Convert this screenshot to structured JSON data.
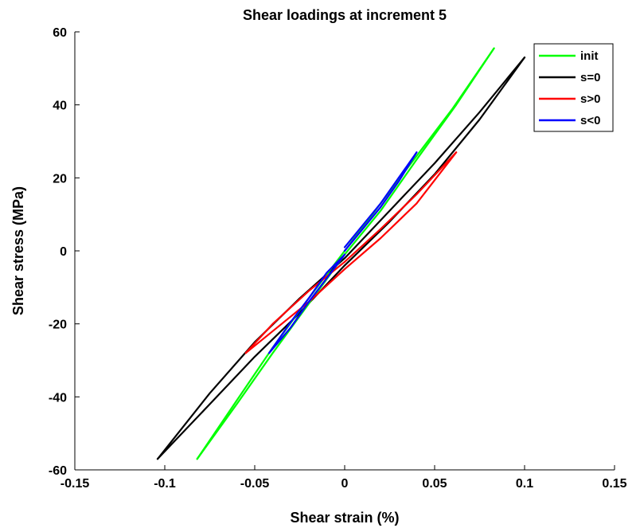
{
  "chart_data": {
    "type": "line",
    "title": "Shear loadings at increment 5",
    "xlabel": "Shear strain (%)",
    "ylabel": "Shear stress (MPa)",
    "xlim": [
      -0.15,
      0.15
    ],
    "ylim": [
      -60,
      60
    ],
    "xticks": [
      -0.15,
      -0.1,
      -0.05,
      0,
      0.05,
      0.1,
      0.15
    ],
    "xtick_labels": [
      "-0.15",
      "-0.1",
      "-0.05",
      "0",
      "0.05",
      "0.1",
      "0.15"
    ],
    "yticks": [
      -60,
      -40,
      -20,
      0,
      20,
      40,
      60
    ],
    "ytick_labels": [
      "-60",
      "-40",
      "-20",
      "0",
      "20",
      "40",
      "60"
    ],
    "grid": false,
    "legend": "top-right",
    "series": [
      {
        "name": "init",
        "color": "#00ff00",
        "segments": [
          [
            [
              0.0,
              0.0
            ],
            [
              0.02,
              13
            ],
            [
              0.04,
              26
            ],
            [
              0.06,
              39
            ],
            [
              0.083,
              55.5
            ]
          ],
          [
            [
              0.083,
              55.5
            ],
            [
              0.062,
              40
            ],
            [
              0.04,
              25
            ],
            [
              0.02,
              11
            ],
            [
              0.0,
              -1
            ]
          ],
          [
            [
              0.0,
              -1
            ],
            [
              -0.02,
              -14.5
            ],
            [
              -0.04,
              -28
            ],
            [
              -0.06,
              -42
            ],
            [
              -0.082,
              -57
            ]
          ],
          [
            [
              -0.082,
              -57
            ],
            [
              -0.06,
              -41
            ],
            [
              -0.04,
              -26.5
            ],
            [
              -0.02,
              -13
            ],
            [
              0.0,
              0.0
            ]
          ]
        ]
      },
      {
        "name": "s=0",
        "color": "#000000",
        "segments": [
          [
            [
              0.0,
              -2
            ],
            [
              0.025,
              11
            ],
            [
              0.05,
              24
            ],
            [
              0.075,
              38
            ],
            [
              0.1,
              53
            ]
          ],
          [
            [
              0.1,
              53
            ],
            [
              0.075,
              36
            ],
            [
              0.05,
              21
            ],
            [
              0.025,
              8
            ],
            [
              0.0,
              -4
            ]
          ],
          [
            [
              0.0,
              -4
            ],
            [
              -0.025,
              -17
            ],
            [
              -0.05,
              -29
            ],
            [
              -0.075,
              -42
            ],
            [
              -0.104,
              -57
            ]
          ],
          [
            [
              -0.104,
              -57
            ],
            [
              -0.075,
              -39
            ],
            [
              -0.05,
              -25
            ],
            [
              -0.025,
              -13
            ],
            [
              0.0,
              -2
            ]
          ]
        ]
      },
      {
        "name": "s>0",
        "color": "#ff0000",
        "segments": [
          [
            [
              0.0,
              -3
            ],
            [
              0.02,
              6
            ],
            [
              0.04,
              15.5
            ],
            [
              0.062,
              27
            ]
          ],
          [
            [
              0.062,
              27
            ],
            [
              0.04,
              13
            ],
            [
              0.02,
              3.5
            ],
            [
              0.0,
              -5
            ]
          ],
          [
            [
              0.0,
              -5
            ],
            [
              -0.02,
              -14
            ],
            [
              -0.04,
              -22
            ],
            [
              -0.055,
              -28
            ]
          ],
          [
            [
              -0.055,
              -28
            ],
            [
              -0.04,
              -20
            ],
            [
              -0.02,
              -11
            ],
            [
              0.0,
              -3
            ]
          ]
        ]
      },
      {
        "name": "s<0",
        "color": "#0000ff",
        "segments": [
          [
            [
              0.0,
              1
            ],
            [
              0.01,
              7
            ],
            [
              0.02,
              13
            ],
            [
              0.03,
              20
            ],
            [
              0.04,
              27
            ]
          ],
          [
            [
              0.04,
              27
            ],
            [
              0.03,
              19
            ],
            [
              0.02,
              12
            ],
            [
              0.01,
              6
            ],
            [
              0.0,
              0
            ]
          ],
          [
            [
              0.0,
              -1
            ],
            [
              -0.01,
              -7.5
            ],
            [
              -0.02,
              -14
            ],
            [
              -0.03,
              -21
            ],
            [
              -0.042,
              -28
            ]
          ],
          [
            [
              -0.042,
              -28
            ],
            [
              -0.03,
              -19.5
            ],
            [
              -0.02,
              -13
            ],
            [
              -0.01,
              -6
            ],
            [
              0.0,
              -1
            ]
          ]
        ]
      }
    ]
  }
}
